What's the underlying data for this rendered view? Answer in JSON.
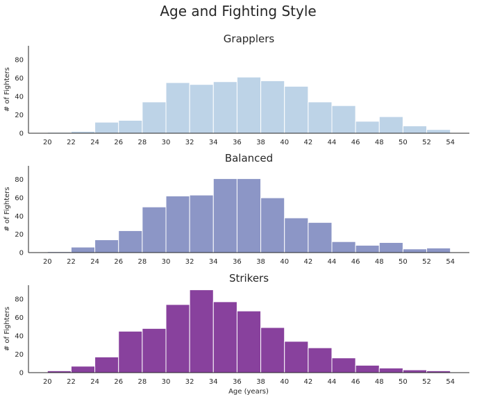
{
  "chart_data": {
    "type": "bar",
    "title": "Age and Fighting Style",
    "xlabel": "Age (years)",
    "ylabel": "# of Fighters",
    "x_ticks": [
      "20",
      "22",
      "24",
      "26",
      "28",
      "30",
      "32",
      "34",
      "36",
      "38",
      "40",
      "42",
      "44",
      "46",
      "48",
      "50",
      "52",
      "54"
    ],
    "y_ticks": [
      "0",
      "20",
      "40",
      "60",
      "80"
    ],
    "xlim": [
      18.4,
      55.6
    ],
    "ylim": [
      0,
      95
    ],
    "bin_edges": [
      20,
      22,
      24,
      26,
      28,
      30,
      32,
      34,
      36,
      38,
      40,
      42,
      44,
      46,
      48,
      50,
      52,
      54
    ],
    "grid": false,
    "panels": [
      {
        "title": "Grapplers",
        "color": "#bdd3e7",
        "values": [
          1,
          2,
          12,
          14,
          34,
          55,
          53,
          56,
          61,
          57,
          51,
          34,
          30,
          13,
          18,
          8,
          4
        ]
      },
      {
        "title": "Balanced",
        "color": "#8c96c6",
        "values": [
          1,
          6,
          14,
          24,
          50,
          62,
          63,
          81,
          81,
          60,
          38,
          33,
          12,
          8,
          11,
          4,
          5
        ]
      },
      {
        "title": "Strikers",
        "color": "#88419d",
        "values": [
          2,
          7,
          17,
          45,
          48,
          74,
          90,
          77,
          67,
          49,
          34,
          27,
          16,
          8,
          5,
          3,
          2
        ]
      }
    ]
  }
}
